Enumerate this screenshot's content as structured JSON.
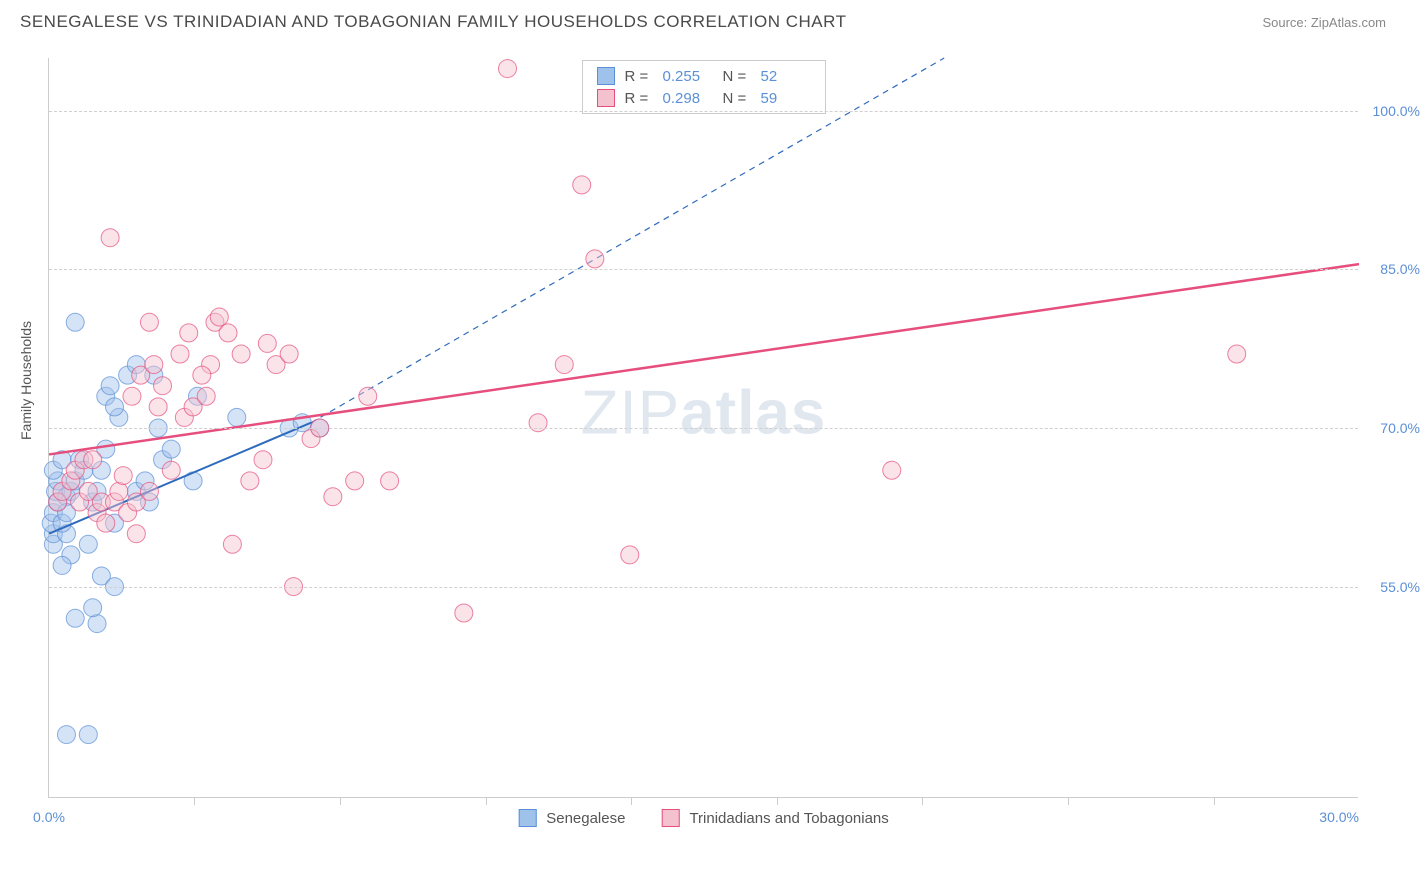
{
  "header": {
    "title": "SENEGALESE VS TRINIDADIAN AND TOBAGONIAN FAMILY HOUSEHOLDS CORRELATION CHART",
    "source": "Source: ZipAtlas.com"
  },
  "watermark": {
    "light": "ZIP",
    "bold": "atlas"
  },
  "chart": {
    "type": "scatter",
    "ylabel": "Family Households",
    "xlim": [
      0,
      30
    ],
    "ylim": [
      35,
      105
    ],
    "yticks": [
      {
        "v": 55,
        "label": "55.0%"
      },
      {
        "v": 70,
        "label": "70.0%"
      },
      {
        "v": 85,
        "label": "85.0%"
      },
      {
        "v": 100,
        "label": "100.0%"
      }
    ],
    "xticks_minor": [
      3.33,
      6.67,
      10,
      13.33,
      16.67,
      20,
      23.33,
      26.67
    ],
    "xticks_label": [
      {
        "v": 0,
        "label": "0.0%",
        "align": "left"
      },
      {
        "v": 30,
        "label": "30.0%",
        "align": "right"
      }
    ],
    "background_color": "#ffffff",
    "grid_color": "#d0d0d0",
    "marker_radius": 9,
    "marker_opacity": 0.45,
    "series": [
      {
        "name": "Senegalese",
        "color_fill": "#9fc2ea",
        "color_stroke": "#5b8fd6",
        "R": "0.255",
        "N": "52",
        "trend": {
          "x1": 0,
          "y1": 60,
          "x2": 6,
          "y2": 70.5,
          "dashed_to_x": 20.5,
          "dashed_to_y": 105,
          "color": "#2f6bbd",
          "width": 2
        },
        "points": [
          [
            0.1,
            59
          ],
          [
            0.1,
            60
          ],
          [
            0.05,
            61
          ],
          [
            0.1,
            62
          ],
          [
            0.2,
            63
          ],
          [
            0.15,
            64
          ],
          [
            0.2,
            65
          ],
          [
            0.1,
            66
          ],
          [
            0.3,
            67
          ],
          [
            0.4,
            63.5
          ],
          [
            0.5,
            64
          ],
          [
            0.4,
            60
          ],
          [
            0.3,
            61
          ],
          [
            0.4,
            62
          ],
          [
            0.6,
            65
          ],
          [
            0.7,
            67
          ],
          [
            0.8,
            66
          ],
          [
            0.5,
            58
          ],
          [
            0.3,
            57
          ],
          [
            0.9,
            59
          ],
          [
            1.0,
            63
          ],
          [
            1.1,
            64
          ],
          [
            1.2,
            66
          ],
          [
            1.3,
            68
          ],
          [
            0.4,
            41
          ],
          [
            0.9,
            41
          ],
          [
            1.1,
            51.5
          ],
          [
            0.6,
            52
          ],
          [
            1.0,
            53
          ],
          [
            1.2,
            56
          ],
          [
            1.5,
            55
          ],
          [
            1.5,
            61
          ],
          [
            1.6,
            71
          ],
          [
            2.0,
            64
          ],
          [
            2.2,
            65
          ],
          [
            2.3,
            63
          ],
          [
            2.5,
            70
          ],
          [
            2.6,
            67
          ],
          [
            3.3,
            65
          ],
          [
            3.4,
            73
          ],
          [
            0.6,
            80
          ],
          [
            1.3,
            73
          ],
          [
            1.4,
            74
          ],
          [
            1.5,
            72
          ],
          [
            1.8,
            75
          ],
          [
            2.0,
            76
          ],
          [
            2.4,
            75
          ],
          [
            2.8,
            68
          ],
          [
            4.3,
            71
          ],
          [
            5.5,
            70
          ],
          [
            5.8,
            70.5
          ],
          [
            6.2,
            70
          ]
        ]
      },
      {
        "name": "Trinidadians and Tobagonians",
        "color_fill": "#f4c2cf",
        "color_stroke": "#e64f7d",
        "R": "0.298",
        "N": "59",
        "trend": {
          "x1": 0,
          "y1": 67.5,
          "x2": 30,
          "y2": 85.5,
          "color": "#e64f7d",
          "width": 2.5
        },
        "points": [
          [
            0.2,
            63
          ],
          [
            0.3,
            64
          ],
          [
            0.5,
            65
          ],
          [
            0.6,
            66
          ],
          [
            0.8,
            67
          ],
          [
            0.7,
            63
          ],
          [
            0.9,
            64
          ],
          [
            1.0,
            67
          ],
          [
            1.1,
            62
          ],
          [
            1.2,
            63
          ],
          [
            1.3,
            61
          ],
          [
            1.5,
            63
          ],
          [
            1.6,
            64
          ],
          [
            1.7,
            65.5
          ],
          [
            1.8,
            62
          ],
          [
            2.0,
            63
          ],
          [
            2.0,
            60
          ],
          [
            2.3,
            64
          ],
          [
            2.5,
            72
          ],
          [
            2.8,
            66
          ],
          [
            3.1,
            71
          ],
          [
            3.3,
            72
          ],
          [
            3.6,
            73
          ],
          [
            3.8,
            80
          ],
          [
            3.9,
            80.5
          ],
          [
            4.1,
            79
          ],
          [
            4.4,
            77
          ],
          [
            5.0,
            78
          ],
          [
            5.2,
            76
          ],
          [
            5.5,
            77
          ],
          [
            5.6,
            55
          ],
          [
            6.0,
            69
          ],
          [
            6.2,
            70
          ],
          [
            6.5,
            63.5
          ],
          [
            7.0,
            65
          ],
          [
            7.3,
            73
          ],
          [
            7.8,
            65
          ],
          [
            9.5,
            52.5
          ],
          [
            10.5,
            104
          ],
          [
            12.2,
            93
          ],
          [
            11.2,
            70.5
          ],
          [
            11.8,
            76
          ],
          [
            12.5,
            86
          ],
          [
            13.3,
            58
          ],
          [
            19.3,
            66
          ],
          [
            27.2,
            77
          ],
          [
            2.1,
            75
          ],
          [
            2.4,
            76
          ],
          [
            2.6,
            74
          ],
          [
            3.0,
            77
          ],
          [
            3.2,
            79
          ],
          [
            3.7,
            76
          ],
          [
            4.2,
            59
          ],
          [
            4.6,
            65
          ],
          [
            4.9,
            67
          ],
          [
            1.4,
            88
          ],
          [
            2.3,
            80
          ],
          [
            1.9,
            73
          ],
          [
            3.5,
            75
          ]
        ]
      }
    ],
    "legend_bottom": [
      {
        "swatch_fill": "#9fc2ea",
        "swatch_stroke": "#5b8fd6",
        "label": "Senegalese"
      },
      {
        "swatch_fill": "#f4c2cf",
        "swatch_stroke": "#e64f7d",
        "label": "Trinidadians and Tobagonians"
      }
    ]
  }
}
